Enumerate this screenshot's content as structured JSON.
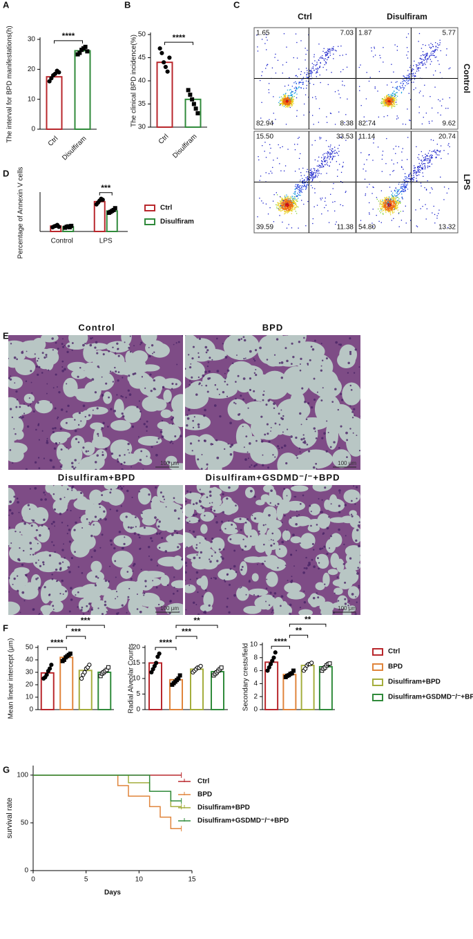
{
  "panel_labels": [
    "A",
    "B",
    "C",
    "D",
    "E",
    "F",
    "G"
  ],
  "chart_data": [
    {
      "type": "bar",
      "ylabel": "The interval for BPD manifestations(h)",
      "categories": [
        "Ctrl",
        "Disulfiram"
      ],
      "colors": [
        "#b8262b",
        "#2f8a3a"
      ],
      "values": [
        17.5,
        26.2
      ],
      "points": [
        [
          16,
          17,
          18,
          18.5,
          19.5,
          19
        ],
        [
          25,
          25.5,
          26.5,
          27,
          27.5,
          26
        ]
      ],
      "ylim": [
        0,
        30
      ],
      "yticks": [
        0,
        10,
        20,
        30
      ],
      "significance": [
        {
          "label": "****",
          "groups": [
            0,
            1
          ]
        }
      ]
    },
    {
      "type": "bar",
      "ylabel": "The clinical BPD incidence(%)",
      "categories": [
        "Ctrl",
        "Disulfiram"
      ],
      "colors": [
        "#b8262b",
        "#2f8a3a"
      ],
      "values": [
        44,
        36
      ],
      "points": [
        [
          47,
          46,
          44,
          43,
          42,
          45
        ],
        [
          38,
          37,
          36,
          35,
          34,
          33
        ]
      ],
      "ylim": [
        30,
        50
      ],
      "yticks": [
        30,
        35,
        40,
        45,
        50
      ],
      "significance": [
        {
          "label": "****",
          "groups": [
            0,
            1
          ]
        }
      ]
    },
    {
      "type": "grouped-bar",
      "ylabel": "Percentage of Annexin V cells",
      "categories": [
        "Control",
        "LPS"
      ],
      "series": [
        {
          "name": "Ctrl",
          "color": "#b8262b",
          "values": [
            5.8,
            32
          ],
          "points": [
            [
              4.5,
              5.5,
              6,
              7,
              5
            ],
            [
              29,
              31,
              33,
              35,
              34
            ]
          ]
        },
        {
          "name": "Disulfiram",
          "color": "#2f8a3a",
          "values": [
            5,
            22
          ],
          "points": [
            [
              4,
              5,
              5.5,
              4.5,
              6
            ],
            [
              20,
              21,
              22,
              23,
              25
            ]
          ]
        }
      ],
      "ylim": [
        0,
        40
      ],
      "significance": [
        {
          "label": "***",
          "groups": [
            2,
            3
          ]
        }
      ]
    },
    {
      "type": "multi-bar",
      "series": [
        {
          "name": "Ctrl",
          "color": "#b8262b"
        },
        {
          "name": "BPD",
          "color": "#e0843a"
        },
        {
          "name": "Disulfiram+BPD",
          "color": "#a4ad3c"
        },
        {
          "name": "Disulfiram+GSDMD⁻/⁻+BPD",
          "color": "#2f8a3a"
        }
      ],
      "subplots": [
        {
          "ylabel": "Mean linear intercept (μm)",
          "values": [
            29.5,
            42,
            31.5,
            30
          ],
          "points": [
            [
              25,
              26,
              28,
              31,
              33,
              36
            ],
            [
              39,
              40,
              42,
              43,
              44,
              45
            ],
            [
              25,
              28,
              30,
              33,
              34,
              36
            ],
            [
              27,
              29,
              30,
              31,
              32,
              34
            ]
          ],
          "ylim": [
            0,
            50
          ],
          "yticks": [
            0,
            10,
            20,
            30,
            40,
            50
          ],
          "significance": [
            {
              "label": "****",
              "groups": [
                0,
                1
              ]
            },
            {
              "label": "***",
              "groups": [
                1,
                2
              ]
            },
            {
              "label": "***",
              "groups": [
                1,
                3
              ]
            }
          ]
        },
        {
          "ylabel": "Radial Alveolar Counts",
          "values": [
            15,
            9.6,
            13,
            12.2
          ],
          "points": [
            [
              12,
              13,
              14,
              15,
              17,
              18
            ],
            [
              8,
              8.5,
              9,
              9.5,
              10,
              11
            ],
            [
              12,
              12.5,
              13,
              13.5,
              13.5,
              14
            ],
            [
              11,
              11.5,
              12,
              12.5,
              13,
              13.5
            ]
          ],
          "ylim": [
            0,
            20
          ],
          "yticks": [
            0,
            5,
            10,
            15,
            20
          ],
          "significance": [
            {
              "label": "****",
              "groups": [
                0,
                1
              ]
            },
            {
              "label": "***",
              "groups": [
                1,
                2
              ]
            },
            {
              "label": "**",
              "groups": [
                1,
                3
              ]
            }
          ]
        },
        {
          "ylabel": "Secondary crests/field",
          "values": [
            7.3,
            5.4,
            6.8,
            6.6
          ],
          "points": [
            [
              6,
              6.5,
              7,
              7.5,
              8,
              8.8
            ],
            [
              5,
              5.2,
              5.3,
              5.5,
              5.6,
              6
            ],
            [
              6,
              6.3,
              6.8,
              7,
              7,
              7.2
            ],
            [
              6,
              6.3,
              6.5,
              6.8,
              7,
              7.1
            ]
          ],
          "ylim": [
            0,
            10
          ],
          "yticks": [
            0,
            2,
            4,
            6,
            8,
            10
          ],
          "significance": [
            {
              "label": "****",
              "groups": [
                0,
                1
              ]
            },
            {
              "label": "**",
              "groups": [
                1,
                2
              ]
            },
            {
              "label": "**",
              "groups": [
                1,
                3
              ]
            }
          ]
        }
      ]
    },
    {
      "type": "step",
      "xlabel": "Days",
      "ylabel": "survival rate",
      "xlim": [
        0,
        15
      ],
      "xticks": [
        0,
        5,
        10,
        15
      ],
      "ylim": [
        0,
        110
      ],
      "yticks": [
        0,
        50,
        100
      ],
      "series": [
        {
          "name": "Ctrl",
          "color": "#b8262b",
          "x": [
            0,
            14
          ],
          "values": [
            100,
            100
          ]
        },
        {
          "name": "BPD",
          "color": "#e0843a",
          "x": [
            0,
            8,
            9,
            11,
            12,
            13,
            14
          ],
          "values": [
            100,
            89,
            78,
            67,
            56,
            44,
            44
          ]
        },
        {
          "name": "Disulfiram+BPD",
          "color": "#a4ad3c",
          "x": [
            0,
            9,
            11,
            13,
            14
          ],
          "values": [
            100,
            92,
            83,
            67,
            67
          ]
        },
        {
          "name": "Disulfiram+GSDMD⁻/⁻+BPD",
          "color": "#2f8a3a",
          "x": [
            0,
            11,
            13,
            14
          ],
          "values": [
            100,
            83,
            73,
            73
          ]
        }
      ]
    }
  ],
  "flow_cytometry": {
    "columns": [
      "Ctrl",
      "Disulfiram"
    ],
    "rows": [
      "Control",
      "LPS"
    ],
    "quadrants": [
      [
        [
          "1.65",
          "7.03",
          "82.94",
          "8.38"
        ],
        [
          "1.87",
          "5.77",
          "82.74",
          "9.62"
        ]
      ],
      [
        [
          "15.50",
          "33.53",
          "39.59",
          "11.38"
        ],
        [
          "11.14",
          "20.74",
          "54.80",
          "13.32"
        ]
      ]
    ]
  },
  "histology": {
    "labels": [
      "Control",
      "BPD",
      "Disulfiram+BPD",
      "Disulfiram+GSDMD⁻/⁻+BPD"
    ],
    "scale_bar": "100 μm"
  }
}
